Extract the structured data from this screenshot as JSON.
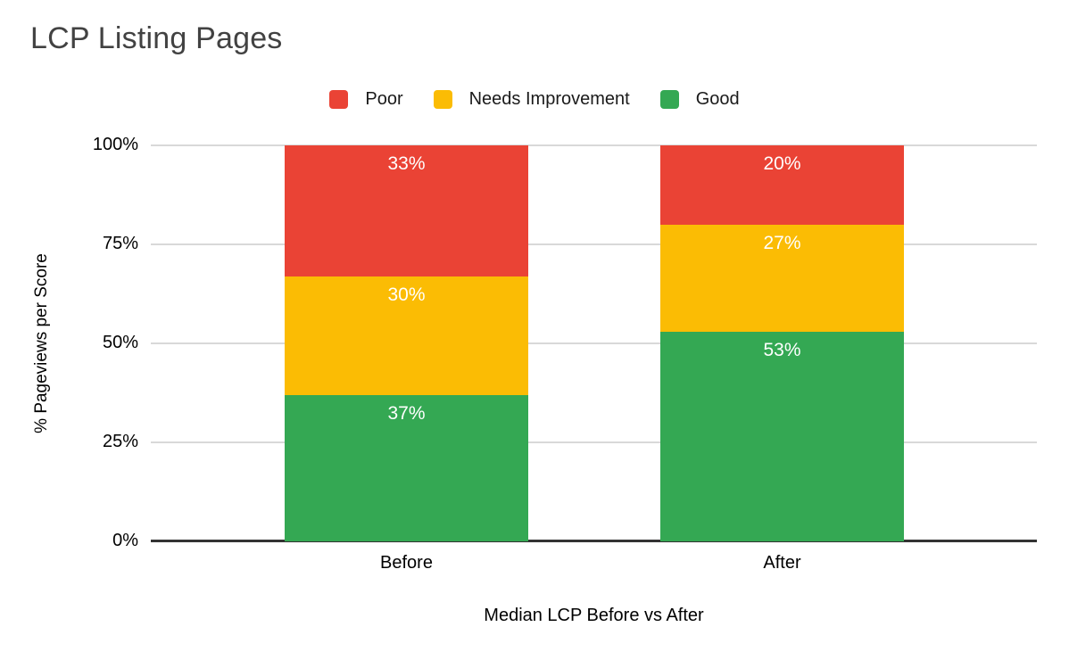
{
  "chart_data": {
    "type": "bar",
    "subtype": "stacked-100-percent",
    "title": "LCP Listing Pages",
    "categories": [
      "Before",
      "After"
    ],
    "series": [
      {
        "name": "Poor",
        "color": "#EA4335",
        "values": [
          33,
          20
        ]
      },
      {
        "name": "Needs Improvement",
        "color": "#FBBC04",
        "values": [
          30,
          27
        ]
      },
      {
        "name": "Good",
        "color": "#34A853",
        "values": [
          37,
          53
        ]
      }
    ],
    "xlabel": "Median LCP Before vs After",
    "ylabel": "% Pageviews per Score",
    "y_ticks": [
      "100%",
      "75%",
      "50%",
      "25%",
      "0%"
    ],
    "ylim": [
      0,
      100
    ],
    "grid": true,
    "legend_position": "top",
    "data_label_suffix": "%",
    "data_label_color": "#FFFFFF",
    "gridline_color": "#D9D9D9",
    "baseline_color": "#333333",
    "title_color": "#424242"
  }
}
